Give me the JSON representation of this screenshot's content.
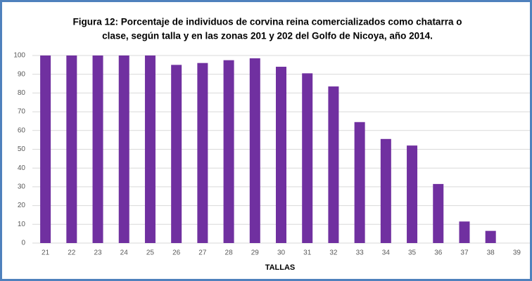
{
  "chart_data": {
    "type": "bar",
    "title": [
      "Figura 12: Porcentaje de individuos de corvina reina comercializados como chatarra o",
      "clase, según talla y en las zonas 201 y 202 del Golfo de Nicoya, año 2014."
    ],
    "x_label": "TALLAS",
    "categories": [
      "21",
      "22",
      "23",
      "24",
      "25",
      "26",
      "27",
      "28",
      "29",
      "30",
      "31",
      "32",
      "33",
      "34",
      "35",
      "36",
      "37",
      "38",
      "39"
    ],
    "values": [
      100,
      100,
      100,
      100,
      100,
      95,
      96,
      97.5,
      98.5,
      94,
      90.5,
      83.5,
      64.5,
      55.5,
      52,
      31.5,
      11.5,
      6.5,
      0
    ],
    "color": "#7030a0",
    "ylim": [
      0,
      100
    ],
    "yticks": [
      0,
      10,
      20,
      30,
      40,
      50,
      60,
      70,
      80,
      90,
      100
    ],
    "grid": true
  }
}
